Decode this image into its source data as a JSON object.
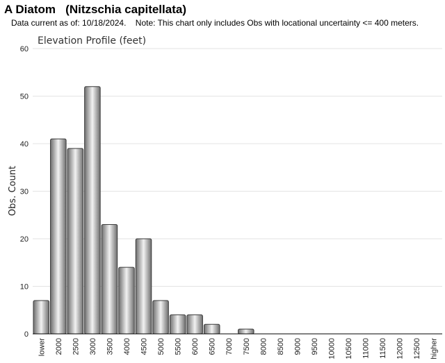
{
  "header": {
    "title": "A Diatom   (Nitzschia capitellata)",
    "subtitle": "Data current as of: 10/18/2024.    Note: This chart only includes Obs with locational uncertainty <= 400 meters."
  },
  "chart_data": {
    "type": "bar",
    "title": "Elevation Profile (feet)",
    "xlabel": "",
    "ylabel": "Obs. Count",
    "ylim": [
      0,
      60
    ],
    "yticks": [
      0,
      10,
      20,
      30,
      40,
      50,
      60
    ],
    "grid": true,
    "categories": [
      "lower",
      "2000",
      "2500",
      "3000",
      "3500",
      "4000",
      "4500",
      "5000",
      "5500",
      "6000",
      "6500",
      "7000",
      "7500",
      "8000",
      "8500",
      "9000",
      "9500",
      "10000",
      "10500",
      "11000",
      "11500",
      "12000",
      "12500",
      "higher"
    ],
    "values": [
      7,
      41,
      39,
      52,
      23,
      14,
      20,
      7,
      4,
      4,
      2,
      0,
      1,
      0,
      0,
      0,
      0,
      0,
      0,
      0,
      0,
      0,
      0,
      0
    ],
    "colors": {
      "bar_dark": "#6e6e6e",
      "bar_light": "#f2f2f2",
      "bar_stroke": "#3a3a3a",
      "grid": "#e3e3e3",
      "axis": "#000000"
    }
  }
}
